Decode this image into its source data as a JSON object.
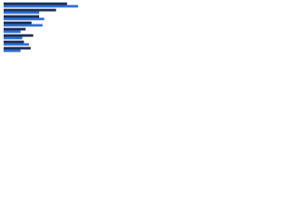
{
  "chart_data": {
    "type": "bar",
    "orientation": "horizontal",
    "categories": [
      null,
      null,
      null,
      null,
      null,
      null,
      null,
      null
    ],
    "series": [
      {
        "color": "#1b2f52",
        "values": [
          75,
          62,
          42,
          33,
          26,
          35,
          24,
          32
        ]
      },
      {
        "color": "#2e6fd6",
        "values": [
          88,
          42,
          48,
          46,
          20,
          22,
          30,
          20
        ]
      }
    ],
    "xlim": [
      0,
      100
    ]
  }
}
